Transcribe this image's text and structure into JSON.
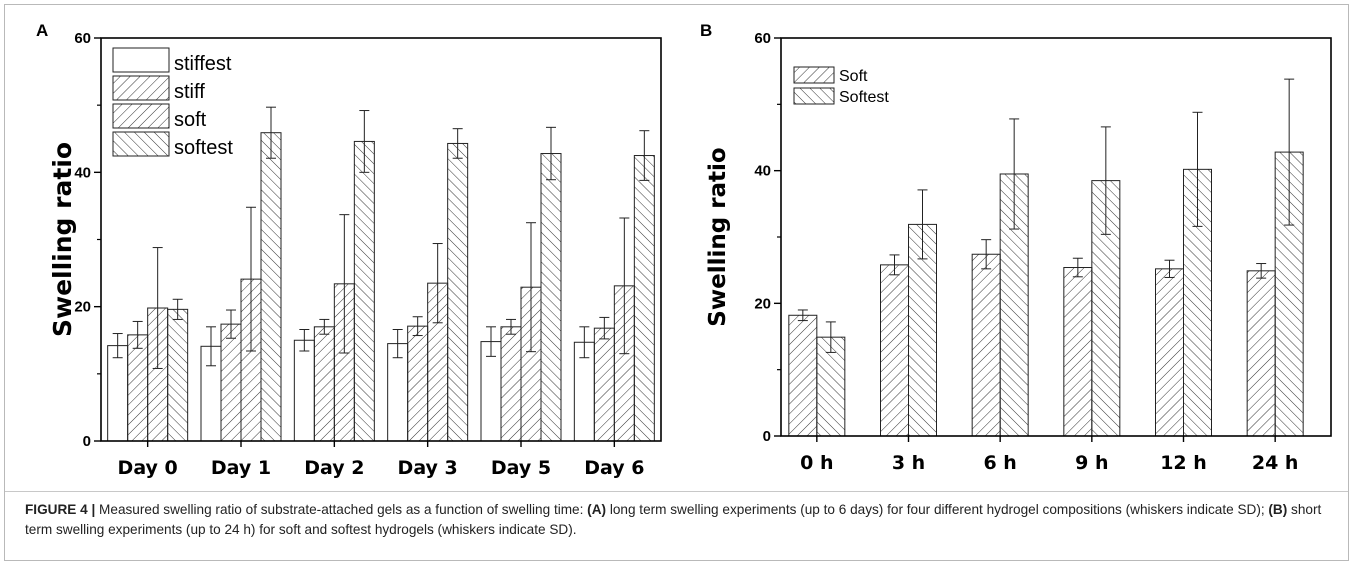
{
  "figure": {
    "caption": {
      "label": "FIGURE 4 |",
      "part1": " Measured swelling ratio of substrate-attached gels as a function of swelling time: ",
      "a_ref": "(A)",
      "part2": " long term swelling experiments (up to 6 days) for four different hydrogel compositions (whiskers indicate SD); ",
      "b_ref": "(B)",
      "part3": " short term swelling experiments (up to 24 h) for soft and softest hydrogels (whiskers indicate SD)."
    }
  },
  "chart_data": [
    {
      "panel": "A",
      "type": "bar",
      "ylabel": "Swelling ratio",
      "xlabel": "",
      "ylim": [
        0,
        60
      ],
      "yticks": [
        "0",
        "20",
        "40",
        "60"
      ],
      "categories": [
        "Day 0",
        "Day 1",
        "Day 2",
        "Day 3",
        "Day 5",
        "Day 6"
      ],
      "legend_position": "top-left",
      "series": [
        {
          "name": "stiffest",
          "pattern": "none",
          "values": [
            14.2,
            14.1,
            15.0,
            14.5,
            14.8,
            14.7
          ],
          "errors": [
            1.8,
            2.9,
            1.6,
            2.1,
            2.2,
            2.3
          ]
        },
        {
          "name": "stiff",
          "pattern": "fwd",
          "values": [
            15.8,
            17.4,
            17.0,
            17.1,
            17.0,
            16.8
          ],
          "errors": [
            2.0,
            2.1,
            1.1,
            1.4,
            1.1,
            1.6
          ]
        },
        {
          "name": "soft",
          "pattern": "fwd",
          "values": [
            19.8,
            24.1,
            23.4,
            23.5,
            22.9,
            23.1
          ],
          "errors": [
            9.0,
            10.7,
            10.3,
            5.9,
            9.6,
            10.1
          ]
        },
        {
          "name": "softest",
          "pattern": "back",
          "values": [
            19.6,
            45.9,
            44.6,
            44.3,
            42.8,
            42.5
          ],
          "errors": [
            1.5,
            3.8,
            4.6,
            2.2,
            3.9,
            3.7
          ]
        }
      ]
    },
    {
      "panel": "B",
      "type": "bar",
      "ylabel": "Swelling ratio",
      "xlabel": "",
      "ylim": [
        0,
        60
      ],
      "yticks": [
        "0",
        "20",
        "40",
        "60"
      ],
      "categories": [
        "0 h",
        "3 h",
        "6 h",
        "9 h",
        "12 h",
        "24 h"
      ],
      "legend_position": "top-left",
      "series": [
        {
          "name": "Soft",
          "pattern": "fwd",
          "values": [
            18.2,
            25.8,
            27.4,
            25.4,
            25.2,
            24.9
          ],
          "errors": [
            0.8,
            1.5,
            2.2,
            1.4,
            1.3,
            1.1
          ]
        },
        {
          "name": "Softest",
          "pattern": "back",
          "values": [
            14.9,
            31.9,
            39.5,
            38.5,
            40.2,
            42.8
          ],
          "errors": [
            2.3,
            5.2,
            8.3,
            8.1,
            8.6,
            11.0
          ]
        }
      ]
    }
  ]
}
